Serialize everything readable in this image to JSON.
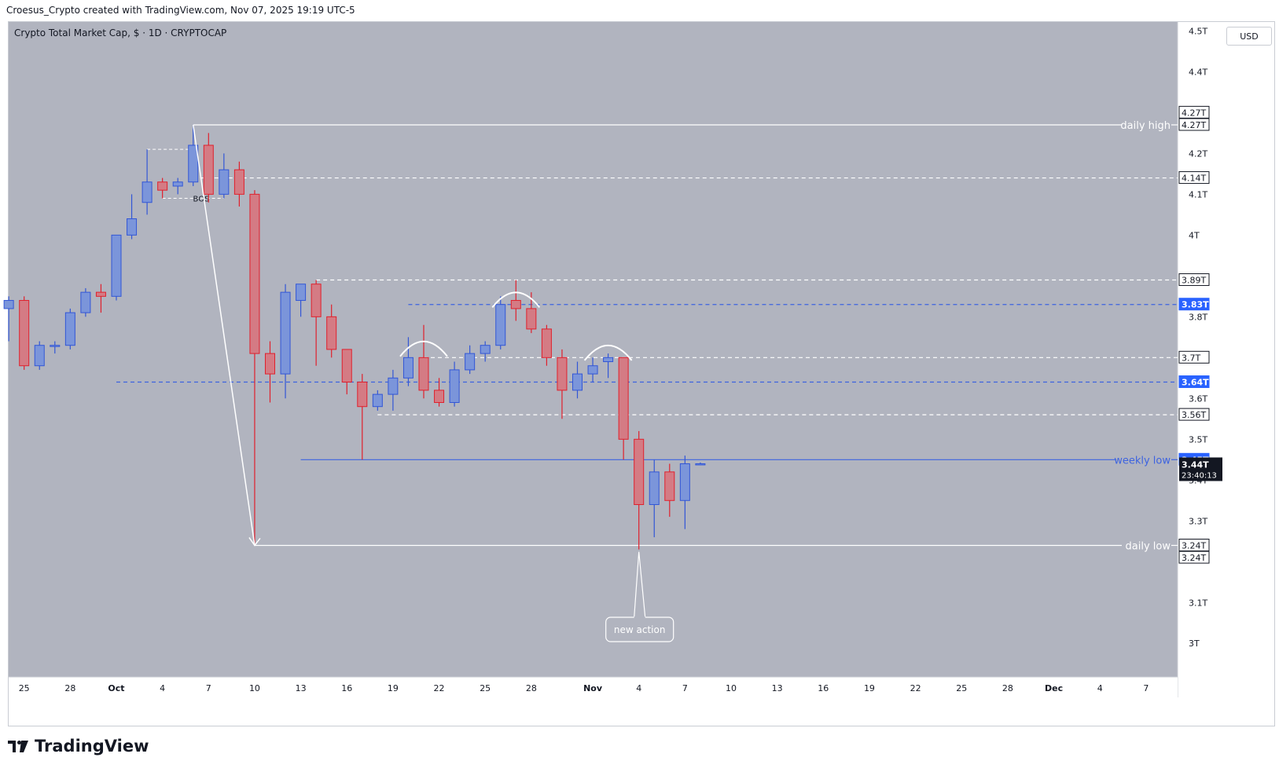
{
  "header": {
    "attribution": "Croesus_Crypto created with TradingView.com, Nov 07, 2025 19:19 UTC-5"
  },
  "chart": {
    "title": "Crypto Total Market Cap, $ · 1D · CRYPTOCAP",
    "currency": "USD",
    "countdown": "23:40:13",
    "brand": "TradingView"
  },
  "colors": {
    "background": "#b1b4bf",
    "bull": "#7b95da",
    "bull_border": "#3256d6",
    "bear": "#d47b84",
    "bear_border": "#e0202c",
    "level_white": "#ffffff",
    "level_blue": "#3d63e0"
  },
  "chart_data": {
    "type": "candlestick",
    "title": "Crypto Total Market Cap, $ · 1D · CRYPTOCAP",
    "ylim": [
      2.95,
      4.52
    ],
    "y_ticks": [
      "4.5T",
      "4.4T",
      "4.2T",
      "4.1T",
      "4T",
      "3.8T",
      "3.6T",
      "3.5T",
      "3.4T",
      "3.3T",
      "3.1T",
      "3T"
    ],
    "x_ticks": [
      {
        "label": "25",
        "day": -6
      },
      {
        "label": "28",
        "day": -3
      },
      {
        "label": "Oct",
        "day": 0
      },
      {
        "label": "4",
        "day": 3
      },
      {
        "label": "7",
        "day": 6
      },
      {
        "label": "10",
        "day": 9
      },
      {
        "label": "13",
        "day": 12
      },
      {
        "label": "16",
        "day": 15
      },
      {
        "label": "19",
        "day": 18
      },
      {
        "label": "22",
        "day": 21
      },
      {
        "label": "25",
        "day": 24
      },
      {
        "label": "28",
        "day": 27
      },
      {
        "label": "Nov",
        "day": 31
      },
      {
        "label": "4",
        "day": 34
      },
      {
        "label": "7",
        "day": 37
      },
      {
        "label": "10",
        "day": 40
      },
      {
        "label": "13",
        "day": 43
      },
      {
        "label": "16",
        "day": 46
      },
      {
        "label": "19",
        "day": 49
      },
      {
        "label": "22",
        "day": 52
      },
      {
        "label": "25",
        "day": 55
      },
      {
        "label": "28",
        "day": 58
      },
      {
        "label": "Dec",
        "day": 61
      },
      {
        "label": "4",
        "day": 64
      },
      {
        "label": "7",
        "day": 67
      }
    ],
    "candles": [
      {
        "date": "2025-09-23",
        "o": 3.82,
        "h": 3.85,
        "l": 3.74,
        "c": 3.84
      },
      {
        "date": "2025-09-24",
        "o": 3.84,
        "h": 3.85,
        "l": 3.67,
        "c": 3.68
      },
      {
        "date": "2025-09-25",
        "o": 3.68,
        "h": 3.74,
        "l": 3.67,
        "c": 3.73
      },
      {
        "date": "2025-09-26",
        "o": 3.73,
        "h": 3.74,
        "l": 3.71,
        "c": 3.73
      },
      {
        "date": "2025-09-27",
        "o": 3.73,
        "h": 3.82,
        "l": 3.72,
        "c": 3.81
      },
      {
        "date": "2025-09-28",
        "o": 3.81,
        "h": 3.87,
        "l": 3.8,
        "c": 3.86
      },
      {
        "date": "2025-09-29",
        "o": 3.86,
        "h": 3.88,
        "l": 3.81,
        "c": 3.85
      },
      {
        "date": "2025-09-30",
        "o": 3.85,
        "h": 4.0,
        "l": 3.84,
        "c": 4.0
      },
      {
        "date": "2025-10-01",
        "o": 4.0,
        "h": 4.1,
        "l": 3.99,
        "c": 4.04
      },
      {
        "date": "2025-10-02",
        "o": 4.08,
        "h": 4.21,
        "l": 4.05,
        "c": 4.13
      },
      {
        "date": "2025-10-03",
        "o": 4.13,
        "h": 4.14,
        "l": 4.09,
        "c": 4.11
      },
      {
        "date": "2025-10-04",
        "o": 4.12,
        "h": 4.14,
        "l": 4.1,
        "c": 4.13
      },
      {
        "date": "2025-10-05",
        "o": 4.13,
        "h": 4.27,
        "l": 4.12,
        "c": 4.22
      },
      {
        "date": "2025-10-06",
        "o": 4.22,
        "h": 4.25,
        "l": 4.08,
        "c": 4.1
      },
      {
        "date": "2025-10-07",
        "o": 4.1,
        "h": 4.2,
        "l": 4.09,
        "c": 4.16
      },
      {
        "date": "2025-10-08",
        "o": 4.16,
        "h": 4.18,
        "l": 4.07,
        "c": 4.1
      },
      {
        "date": "2025-10-09",
        "o": 4.1,
        "h": 4.11,
        "l": 3.24,
        "c": 3.71
      },
      {
        "date": "2025-10-10",
        "o": 3.71,
        "h": 3.74,
        "l": 3.59,
        "c": 3.66
      },
      {
        "date": "2025-10-11",
        "o": 3.66,
        "h": 3.88,
        "l": 3.6,
        "c": 3.86
      },
      {
        "date": "2025-10-12",
        "o": 3.84,
        "h": 3.88,
        "l": 3.8,
        "c": 3.88
      },
      {
        "date": "2025-10-13",
        "o": 3.88,
        "h": 3.89,
        "l": 3.68,
        "c": 3.8
      },
      {
        "date": "2025-10-14",
        "o": 3.8,
        "h": 3.83,
        "l": 3.7,
        "c": 3.72
      },
      {
        "date": "2025-10-15",
        "o": 3.72,
        "h": 3.72,
        "l": 3.61,
        "c": 3.64
      },
      {
        "date": "2025-10-16",
        "o": 3.64,
        "h": 3.66,
        "l": 3.45,
        "c": 3.58
      },
      {
        "date": "2025-10-17",
        "o": 3.58,
        "h": 3.62,
        "l": 3.57,
        "c": 3.61
      },
      {
        "date": "2025-10-18",
        "o": 3.61,
        "h": 3.67,
        "l": 3.57,
        "c": 3.65
      },
      {
        "date": "2025-10-19",
        "o": 3.65,
        "h": 3.75,
        "l": 3.63,
        "c": 3.7
      },
      {
        "date": "2025-10-20",
        "o": 3.7,
        "h": 3.78,
        "l": 3.6,
        "c": 3.62
      },
      {
        "date": "2025-10-21",
        "o": 3.62,
        "h": 3.65,
        "l": 3.58,
        "c": 3.59
      },
      {
        "date": "2025-10-22",
        "o": 3.59,
        "h": 3.69,
        "l": 3.58,
        "c": 3.67
      },
      {
        "date": "2025-10-23",
        "o": 3.67,
        "h": 3.73,
        "l": 3.66,
        "c": 3.71
      },
      {
        "date": "2025-10-24",
        "o": 3.71,
        "h": 3.74,
        "l": 3.69,
        "c": 3.73
      },
      {
        "date": "2025-10-25",
        "o": 3.73,
        "h": 3.85,
        "l": 3.72,
        "c": 3.83
      },
      {
        "date": "2025-10-26",
        "o": 3.84,
        "h": 3.89,
        "l": 3.79,
        "c": 3.82
      },
      {
        "date": "2025-10-27",
        "o": 3.82,
        "h": 3.86,
        "l": 3.76,
        "c": 3.77
      },
      {
        "date": "2025-10-28",
        "o": 3.77,
        "h": 3.78,
        "l": 3.68,
        "c": 3.7
      },
      {
        "date": "2025-10-29",
        "o": 3.7,
        "h": 3.72,
        "l": 3.55,
        "c": 3.62
      },
      {
        "date": "2025-10-30",
        "o": 3.62,
        "h": 3.69,
        "l": 3.6,
        "c": 3.66
      },
      {
        "date": "2025-10-31",
        "o": 3.66,
        "h": 3.7,
        "l": 3.64,
        "c": 3.68
      },
      {
        "date": "2025-11-01",
        "o": 3.69,
        "h": 3.71,
        "l": 3.65,
        "c": 3.7
      },
      {
        "date": "2025-11-02",
        "o": 3.7,
        "h": 3.7,
        "l": 3.45,
        "c": 3.5
      },
      {
        "date": "2025-11-03",
        "o": 3.5,
        "h": 3.52,
        "l": 3.23,
        "c": 3.34
      },
      {
        "date": "2025-11-04",
        "o": 3.34,
        "h": 3.45,
        "l": 3.26,
        "c": 3.42
      },
      {
        "date": "2025-11-05",
        "o": 3.42,
        "h": 3.44,
        "l": 3.31,
        "c": 3.35
      },
      {
        "date": "2025-11-06",
        "o": 3.35,
        "h": 3.46,
        "l": 3.28,
        "c": 3.44
      },
      {
        "date": "2025-11-07",
        "o": 3.44,
        "h": 3.443,
        "l": 3.437,
        "c": 3.44
      }
    ],
    "levels": [
      {
        "value": 4.27,
        "label": "daily high",
        "style": "solid",
        "color": "white",
        "start": "2025-10-05",
        "tag": "4.27T"
      },
      {
        "value": 4.14,
        "style": "dashed",
        "color": "white",
        "start": "2025-10-05",
        "tag": "4.14T"
      },
      {
        "value": 3.89,
        "style": "dashed",
        "color": "white",
        "start": "2025-10-13",
        "tag": "3.89T"
      },
      {
        "value": 3.83,
        "style": "dashed",
        "color": "blue",
        "start": "2025-10-19",
        "tag": "3.83T"
      },
      {
        "value": 3.7,
        "style": "dashed",
        "color": "white",
        "start": "2025-10-20",
        "tag": "3.7T"
      },
      {
        "value": 3.64,
        "style": "dashed",
        "color": "blue",
        "start": "2025-09-30",
        "tag": "3.64T"
      },
      {
        "value": 3.56,
        "style": "dashed",
        "color": "white",
        "start": "2025-10-17",
        "tag": "3.56T"
      },
      {
        "value": 3.45,
        "label": "weekly low",
        "style": "solid",
        "color": "blue",
        "start": "2025-10-12",
        "tag": "3.45T"
      },
      {
        "value": 3.24,
        "label": "daily low",
        "style": "solid",
        "color": "white",
        "start": "2025-10-09",
        "tag": "3.24T"
      }
    ],
    "extra_tags": [
      "4.27T",
      "3.24T"
    ],
    "current_price_tag": "3.44T",
    "annotations": {
      "bos_label": "BOS",
      "callout": "new action"
    }
  }
}
